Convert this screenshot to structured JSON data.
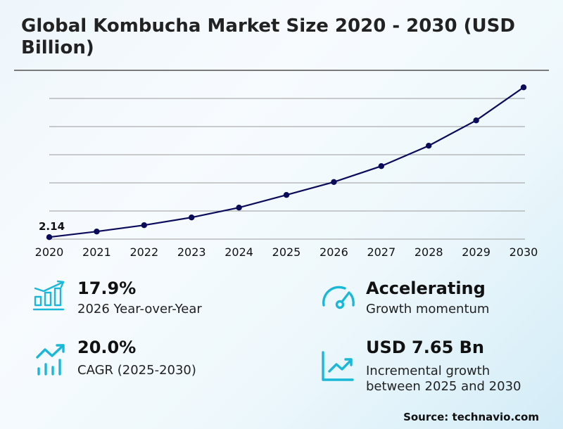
{
  "header": {
    "title": "Global Kombucha Market Size 2020 - 2030 (USD Billion)"
  },
  "chart_data": {
    "type": "line",
    "title": "Global Kombucha Market Size 2020 - 2030 (USD Billion)",
    "xlabel": "",
    "ylabel": "USD Billion",
    "categories": [
      "2020",
      "2021",
      "2022",
      "2023",
      "2024",
      "2025",
      "2026",
      "2027",
      "2028",
      "2029",
      "2030"
    ],
    "series": [
      {
        "name": "Market Size",
        "values": [
          2.14,
          2.54,
          2.99,
          3.54,
          4.24,
          5.14,
          6.06,
          7.19,
          8.64,
          10.44,
          12.79
        ]
      }
    ],
    "annotations": [
      {
        "x": "2020",
        "label": "2.14"
      }
    ],
    "ylim": [
      2,
      12
    ],
    "grid": true,
    "line_color": "#0b0b5c"
  },
  "stats": [
    {
      "icon": "bar-growth-icon",
      "value": "17.9%",
      "desc": "2026 Year-over-Year"
    },
    {
      "icon": "trend-up-bars-icon",
      "value": "20.0%",
      "desc": "CAGR (2025-2030)"
    },
    {
      "icon": "speedometer-icon",
      "value": "Accelerating",
      "desc": "Growth momentum"
    },
    {
      "icon": "line-chart-up-icon",
      "value": "USD 7.65 Bn",
      "desc_line1": "Incremental growth",
      "desc_line2": "between 2025 and 2030"
    }
  ],
  "footer": {
    "source": "Source: technavio.com"
  },
  "colors": {
    "accent": "#1ab8d8",
    "line": "#0b0b5c",
    "grid": "#9a9a9a"
  }
}
